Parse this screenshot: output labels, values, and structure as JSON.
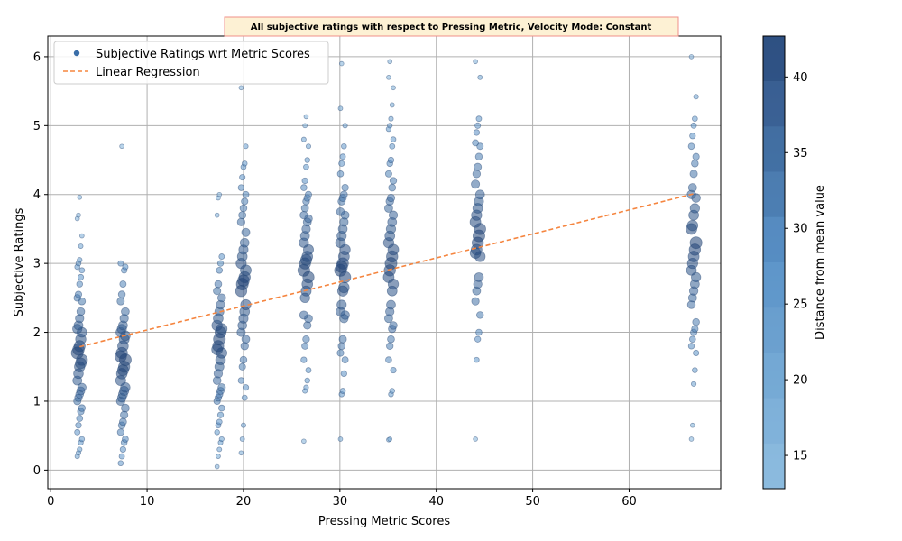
{
  "chart_data": {
    "type": "scatter",
    "title": "All subjective ratings with respect to Pressing Metric, Velocity Mode: Constant",
    "xlabel": "Pressing Metric Scores",
    "ylabel": "Subjective Ratings",
    "xlim": [
      -0.3,
      69.5
    ],
    "ylim": [
      -0.27,
      6.3
    ],
    "xticks": [
      0,
      10,
      20,
      30,
      40,
      50,
      60
    ],
    "yticks": [
      0,
      1,
      2,
      3,
      4,
      5,
      6
    ],
    "grid": true,
    "legend_position": "upper-left",
    "series": [
      {
        "name": "Subjective Ratings wrt Metric Scores",
        "kind": "scatter",
        "color": "#3a6ea8",
        "groups": [
          {
            "x": 3.0,
            "min": 0.17,
            "max": 3.96,
            "mean": 1.7,
            "points": [
              0.2,
              0.25,
              0.3,
              0.4,
              0.45,
              0.55,
              0.65,
              0.75,
              0.85,
              0.9,
              1.0,
              1.05,
              1.1,
              1.15,
              1.2,
              1.3,
              1.4,
              1.5,
              1.55,
              1.6,
              1.7,
              1.75,
              1.8,
              1.9,
              2.0,
              2.05,
              2.1,
              2.2,
              2.3,
              2.45,
              2.5,
              2.55,
              2.7,
              2.8,
              2.9,
              2.95,
              3.0,
              3.05,
              3.25,
              3.4,
              3.65,
              3.7,
              3.96
            ]
          },
          {
            "x": 7.5,
            "min": 0.1,
            "max": 4.7,
            "mean": 1.6,
            "points": [
              0.1,
              0.2,
              0.3,
              0.4,
              0.45,
              0.55,
              0.65,
              0.7,
              0.8,
              0.9,
              1.0,
              1.05,
              1.1,
              1.15,
              1.2,
              1.3,
              1.4,
              1.45,
              1.5,
              1.6,
              1.65,
              1.7,
              1.8,
              1.9,
              1.95,
              2.0,
              2.05,
              2.1,
              2.2,
              2.3,
              2.45,
              2.55,
              2.7,
              2.9,
              2.95,
              3.0,
              4.7
            ]
          },
          {
            "x": 17.5,
            "min": 0.05,
            "max": 4.0,
            "mean": 1.9,
            "points": [
              0.05,
              0.2,
              0.3,
              0.4,
              0.45,
              0.55,
              0.65,
              0.7,
              0.8,
              0.9,
              1.0,
              1.05,
              1.1,
              1.15,
              1.2,
              1.3,
              1.4,
              1.5,
              1.6,
              1.7,
              1.75,
              1.8,
              1.9,
              2.0,
              2.05,
              2.1,
              2.2,
              2.3,
              2.4,
              2.5,
              2.6,
              2.7,
              2.9,
              3.0,
              3.1,
              3.7,
              3.95,
              4.0
            ]
          },
          {
            "x": 20.0,
            "min": 0.25,
            "max": 5.55,
            "mean": 2.7,
            "points": [
              0.25,
              0.45,
              0.65,
              1.05,
              1.2,
              1.3,
              1.5,
              1.6,
              1.8,
              1.9,
              2.0,
              2.1,
              2.2,
              2.3,
              2.4,
              2.6,
              2.7,
              2.75,
              2.8,
              2.9,
              3.0,
              3.1,
              3.2,
              3.3,
              3.45,
              3.6,
              3.7,
              3.8,
              3.9,
              4.0,
              4.1,
              4.25,
              4.4,
              4.45,
              4.7,
              5.55
            ]
          },
          {
            "x": 26.5,
            "min": 0.42,
            "max": 5.13,
            "mean": 2.9,
            "points": [
              0.42,
              1.15,
              1.2,
              1.3,
              1.45,
              1.6,
              1.8,
              1.9,
              2.1,
              2.2,
              2.25,
              2.5,
              2.6,
              2.7,
              2.8,
              2.9,
              3.0,
              3.05,
              3.1,
              3.2,
              3.3,
              3.4,
              3.5,
              3.6,
              3.65,
              3.7,
              3.8,
              3.9,
              3.95,
              4.0,
              4.1,
              4.2,
              4.4,
              4.5,
              4.7,
              4.8,
              5.0,
              5.13
            ]
          },
          {
            "x": 30.3,
            "min": 0.45,
            "max": 5.9,
            "mean": 2.9,
            "points": [
              0.45,
              1.1,
              1.15,
              1.4,
              1.6,
              1.7,
              1.8,
              1.9,
              2.2,
              2.25,
              2.3,
              2.4,
              2.6,
              2.65,
              2.8,
              2.9,
              2.95,
              3.0,
              3.1,
              3.2,
              3.3,
              3.4,
              3.5,
              3.6,
              3.7,
              3.75,
              3.9,
              3.95,
              4.0,
              4.1,
              4.3,
              4.45,
              4.55,
              4.7,
              5.0,
              5.25,
              5.9
            ]
          },
          {
            "x": 35.3,
            "min": 0.44,
            "max": 5.93,
            "mean": 3.0,
            "points": [
              0.44,
              0.45,
              1.1,
              1.15,
              1.45,
              1.6,
              1.8,
              1.9,
              2.05,
              2.1,
              2.2,
              2.3,
              2.4,
              2.6,
              2.7,
              2.8,
              2.9,
              3.0,
              3.1,
              3.2,
              3.3,
              3.4,
              3.5,
              3.6,
              3.7,
              3.8,
              3.9,
              3.95,
              4.1,
              4.2,
              4.3,
              4.45,
              4.5,
              4.7,
              4.8,
              4.95,
              5.0,
              5.1,
              5.3,
              5.55,
              5.7,
              5.93
            ]
          },
          {
            "x": 44.3,
            "min": 0.45,
            "max": 5.93,
            "mean": 3.4,
            "points": [
              0.45,
              1.6,
              1.9,
              2.0,
              2.25,
              2.45,
              2.6,
              2.7,
              2.8,
              3.1,
              3.15,
              3.2,
              3.3,
              3.4,
              3.5,
              3.6,
              3.7,
              3.8,
              3.9,
              4.0,
              4.15,
              4.3,
              4.4,
              4.55,
              4.7,
              4.75,
              4.9,
              5.0,
              5.1,
              5.7,
              5.93
            ]
          },
          {
            "x": 66.7,
            "min": 0.45,
            "max": 6.0,
            "mean": 3.3,
            "points": [
              0.45,
              0.65,
              1.25,
              1.45,
              1.7,
              1.8,
              1.9,
              2.0,
              2.05,
              2.15,
              2.4,
              2.5,
              2.6,
              2.7,
              2.8,
              2.9,
              3.0,
              3.1,
              3.2,
              3.3,
              3.5,
              3.55,
              3.7,
              3.8,
              3.95,
              4.0,
              4.1,
              4.3,
              4.45,
              4.55,
              4.7,
              4.85,
              5.0,
              5.1,
              5.42,
              6.0
            ]
          }
        ]
      },
      {
        "name": "Linear Regression",
        "kind": "line",
        "color": "#f5853f",
        "style": "dashed",
        "x": [
          3.0,
          66.7
        ],
        "y": [
          1.79,
          4.01
        ]
      }
    ],
    "colorbar": {
      "label": "Distance from mean value",
      "min": 12.8,
      "max": 42.7,
      "ticks": [
        15,
        20,
        25,
        30,
        35,
        40
      ],
      "color_low": "#8fbee0",
      "color_high": "#4e6a94"
    }
  }
}
